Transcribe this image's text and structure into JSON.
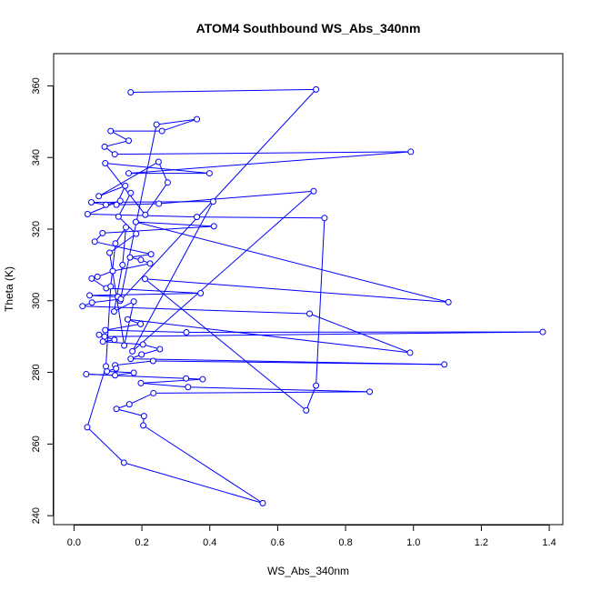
{
  "chart_data": {
    "type": "line",
    "title": "ATOM4 Southbound WS_Abs_340nm",
    "xlabel": "WS_Abs_340nm",
    "ylabel": "Theta (K)",
    "xlim": [
      -0.06,
      1.44
    ],
    "ylim": [
      237.5,
      369
    ],
    "xticks": [
      0.0,
      0.2,
      0.4,
      0.6,
      0.8,
      1.0,
      1.2,
      1.4
    ],
    "xtick_labels": [
      "0.0",
      "0.2",
      "0.4",
      "0.6",
      "0.8",
      "1.0",
      "1.2",
      "1.4"
    ],
    "yticks": [
      240,
      260,
      280,
      300,
      320,
      340,
      360
    ],
    "ytick_labels": [
      "240",
      "260",
      "280",
      "300",
      "320",
      "340",
      "360"
    ],
    "grid": false,
    "legend": "none",
    "series": [
      {
        "color": "#0000ff",
        "marker": "open-circle",
        "connected": true,
        "points": [
          [
            0.167,
            358.2
          ],
          [
            0.713,
            359.0
          ],
          [
            0.136,
            300.0
          ],
          [
            0.243,
            349.2
          ],
          [
            0.362,
            350.7
          ],
          [
            0.259,
            347.4
          ],
          [
            0.108,
            347.4
          ],
          [
            0.161,
            344.7
          ],
          [
            0.09,
            343.0
          ],
          [
            0.12,
            340.9
          ],
          [
            0.992,
            341.6
          ],
          [
            0.161,
            335.6
          ],
          [
            0.399,
            335.6
          ],
          [
            0.092,
            338.4
          ],
          [
            0.21,
            324.0
          ],
          [
            0.276,
            333.0
          ],
          [
            0.249,
            338.8
          ],
          [
            0.073,
            329.2
          ],
          [
            0.151,
            332.1
          ],
          [
            0.125,
            326.8
          ],
          [
            0.25,
            327.1
          ],
          [
            0.706,
            330.6
          ],
          [
            0.172,
            285.9
          ],
          [
            0.41,
            327.7
          ],
          [
            0.051,
            327.5
          ],
          [
            0.094,
            326.8
          ],
          [
            0.136,
            327.9
          ],
          [
            0.04,
            324.2
          ],
          [
            0.362,
            323.4
          ],
          [
            0.738,
            323.1
          ],
          [
            0.713,
            276.3
          ],
          [
            0.684,
            269.4
          ],
          [
            0.209,
            306.1
          ],
          [
            1.103,
            299.6
          ],
          [
            0.182,
            322.0
          ],
          [
            0.412,
            320.8
          ],
          [
            0.084,
            318.9
          ],
          [
            0.061,
            316.5
          ],
          [
            0.227,
            313.0
          ],
          [
            0.165,
            312.1
          ],
          [
            0.197,
            311.4
          ],
          [
            0.224,
            310.4
          ],
          [
            0.114,
            308.3
          ],
          [
            0.069,
            306.7
          ],
          [
            0.052,
            306.2
          ],
          [
            0.095,
            303.5
          ],
          [
            0.373,
            302.1
          ],
          [
            0.046,
            301.5
          ],
          [
            0.129,
            301.1
          ],
          [
            0.138,
            300.5
          ],
          [
            0.053,
            299.5
          ],
          [
            0.025,
            298.5
          ],
          [
            0.694,
            296.4
          ],
          [
            0.99,
            285.5
          ],
          [
            0.158,
            294.8
          ],
          [
            0.196,
            293.5
          ],
          [
            0.092,
            291.8
          ],
          [
            0.331,
            291.2
          ],
          [
            1.381,
            291.3
          ],
          [
            0.09,
            290.0
          ],
          [
            0.074,
            290.5
          ],
          [
            0.119,
            289.1
          ],
          [
            0.085,
            288.6
          ],
          [
            0.203,
            287.8
          ],
          [
            0.253,
            286.5
          ],
          [
            0.199,
            285.0
          ],
          [
            0.167,
            283.8
          ],
          [
            1.091,
            282.2
          ],
          [
            0.233,
            283.2
          ],
          [
            0.121,
            282.0
          ],
          [
            0.124,
            281.1
          ],
          [
            0.097,
            280.3
          ],
          [
            0.176,
            279.9
          ],
          [
            0.121,
            279.2
          ],
          [
            0.036,
            279.5
          ],
          [
            0.33,
            278.3
          ],
          [
            0.379,
            278.1
          ],
          [
            0.197,
            277.0
          ],
          [
            0.336,
            275.9
          ],
          [
            0.871,
            274.6
          ],
          [
            0.234,
            274.2
          ],
          [
            0.163,
            271.1
          ],
          [
            0.125,
            269.8
          ],
          [
            0.206,
            267.8
          ],
          [
            0.204,
            265.2
          ],
          [
            0.556,
            243.5
          ],
          [
            0.147,
            254.8
          ],
          [
            0.039,
            264.7
          ],
          [
            0.094,
            281.7
          ],
          [
            0.108,
            304.0
          ],
          [
            0.122,
            316.0
          ],
          [
            0.153,
            320.5
          ],
          [
            0.143,
            310.0
          ],
          [
            0.118,
            297.0
          ],
          [
            0.176,
            299.8
          ],
          [
            0.148,
            287.5
          ],
          [
            0.105,
            313.4
          ],
          [
            0.183,
            318.7
          ],
          [
            0.131,
            323.5
          ],
          [
            0.167,
            330.1
          ]
        ]
      }
    ]
  }
}
